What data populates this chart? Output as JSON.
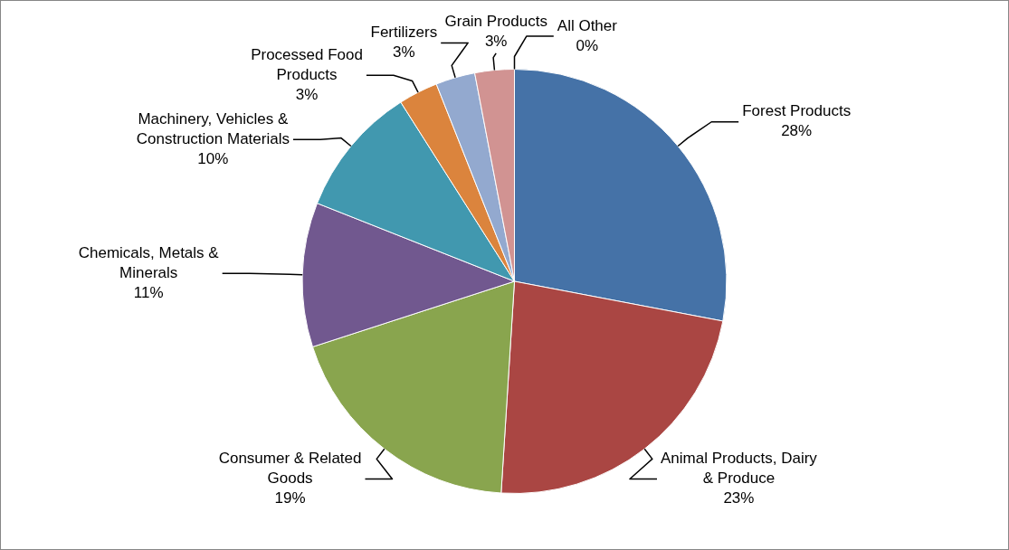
{
  "chart_data": {
    "type": "pie",
    "categories": [
      "Forest Products",
      "Animal Products, Dairy & Produce",
      "Consumer & Related Goods",
      "Chemicals, Metals & Minerals",
      "Machinery, Vehicles & Construction Materials",
      "Processed Food Products",
      "Fertilizers",
      "Grain Products",
      "All Other"
    ],
    "values": [
      28,
      23,
      19,
      11,
      10,
      3,
      3,
      3,
      0
    ],
    "value_labels": [
      "28%",
      "23%",
      "19%",
      "11%",
      "10%",
      "3%",
      "3%",
      "3%",
      "0%"
    ],
    "colors": [
      "#4572a7",
      "#aa4643",
      "#89a54e",
      "#71588f",
      "#4198af",
      "#db843d",
      "#93a9cf",
      "#d19392",
      "#b9cd96"
    ]
  }
}
